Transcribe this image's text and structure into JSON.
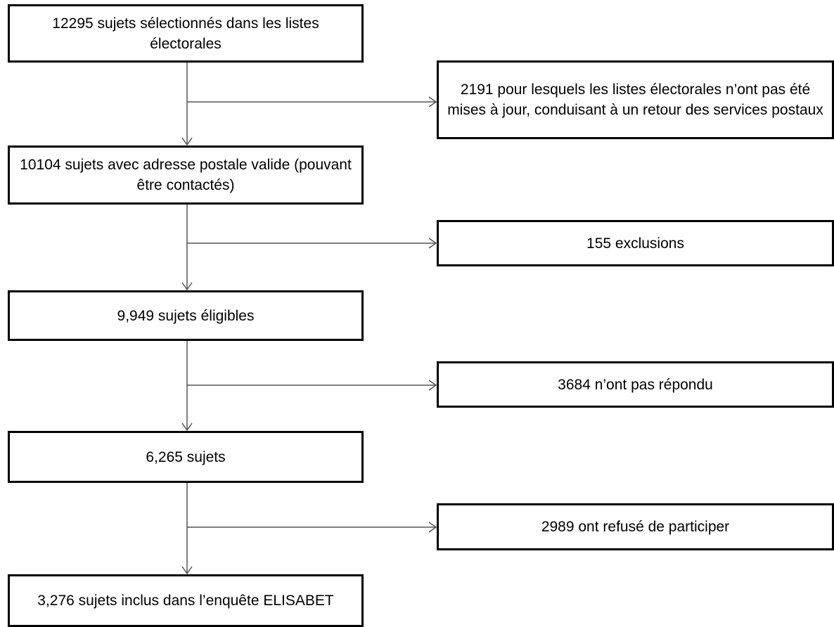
{
  "flowchart": {
    "main_steps": [
      {
        "id": "selected",
        "label": "12295 sujets sélectionnés dans les listes électorales"
      },
      {
        "id": "valid-address",
        "label": "10104 sujets avec adresse postale valide (pouvant être contactés)"
      },
      {
        "id": "eligible",
        "label": "9,949 sujets éligibles"
      },
      {
        "id": "respondents",
        "label": "6,265 sujets"
      },
      {
        "id": "included",
        "label": "3,276 sujets inclus dans l’enquête ELISABET"
      }
    ],
    "exclusions": [
      {
        "id": "not-updated",
        "label": "2191 pour lesquels les listes électorales n’ont pas été mises à jour, conduisant à un retour des services postaux"
      },
      {
        "id": "excluded",
        "label": "155 exclusions"
      },
      {
        "id": "no-response",
        "label": "3684 n’ont pas répondu"
      },
      {
        "id": "refused",
        "label": "2989 ont refusé de participer"
      }
    ]
  },
  "colors": {
    "box_border": "#000000",
    "connector": "#555555",
    "background": "#ffffff"
  }
}
